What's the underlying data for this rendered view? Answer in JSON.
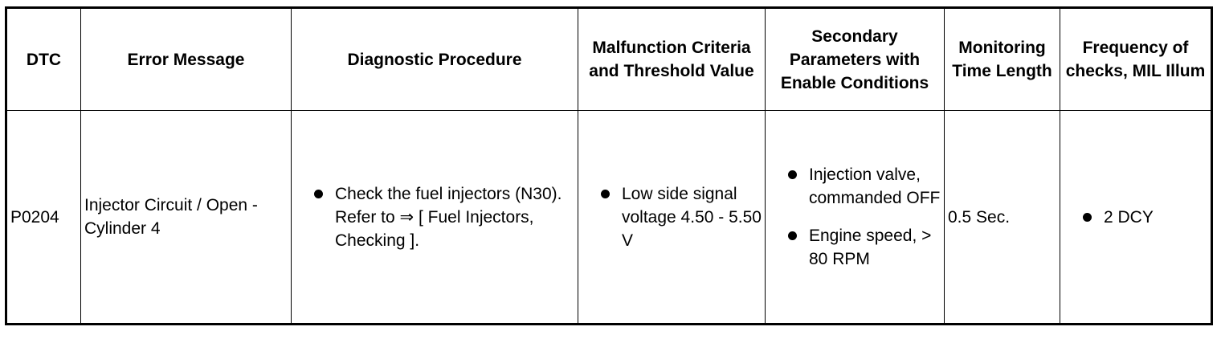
{
  "table": {
    "columns": [
      "DTC",
      "Error Message",
      "Diagnostic Procedure",
      "Malfunction Criteria and Threshold Value",
      "Secondary Parameters with Enable Conditions",
      "Monitoring Time Length",
      "Frequency of checks, MIL Illum"
    ],
    "rows": [
      [
        "P0204",
        "Injector Circuit / Open - Cylinder 4",
        [
          "Check the fuel injectors (N30). Refer to ⇒ [ Fuel Injectors, Checking ]."
        ],
        [
          "Low side signal voltage 4.50 - 5.50 V"
        ],
        [
          "Injection valve, commanded OFF",
          "Engine speed, > 80 RPM"
        ],
        "0.5 Sec.",
        [
          "2 DCY"
        ]
      ]
    ]
  }
}
